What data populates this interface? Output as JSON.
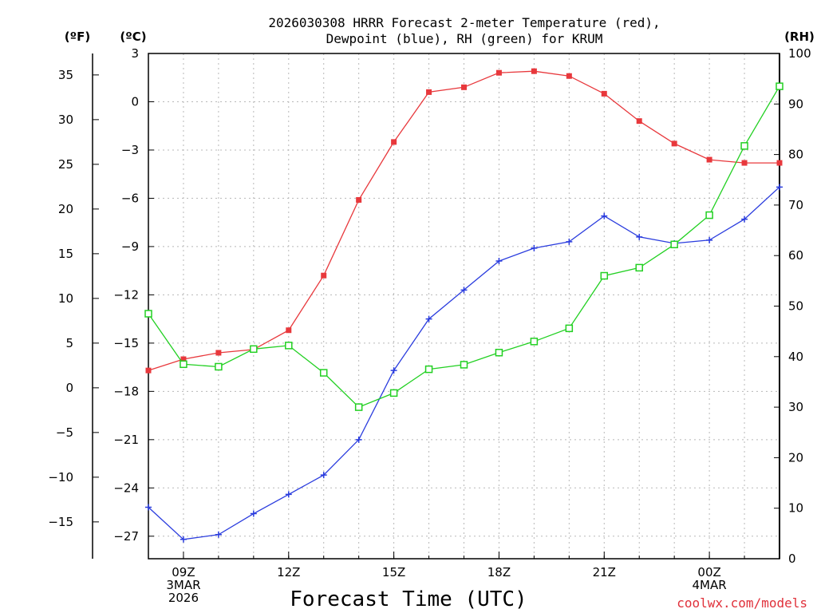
{
  "chart_data": {
    "type": "line",
    "title_line1": "2026030308 HRRR Forecast 2-meter Temperature (red),",
    "title_line2": "Dewpoint (blue), RH (green) for KRUM",
    "xlabel": "Forecast Time (UTC)",
    "credit": "coolwx.com/models",
    "units": {
      "left_f": "(ºF)",
      "left_c": "(ºC)",
      "right": "(RH)"
    },
    "x_hours": [
      8,
      9,
      10,
      11,
      12,
      13,
      14,
      15,
      16,
      17,
      18,
      19,
      20,
      21,
      22,
      23,
      24,
      25,
      26
    ],
    "xlim": [
      8,
      26
    ],
    "x_ticks": [
      {
        "hour": 9,
        "lines": [
          "09Z",
          "3MAR",
          "2026"
        ]
      },
      {
        "hour": 12,
        "lines": [
          "12Z"
        ]
      },
      {
        "hour": 15,
        "lines": [
          "15Z"
        ]
      },
      {
        "hour": 18,
        "lines": [
          "18Z"
        ]
      },
      {
        "hour": 21,
        "lines": [
          "21Z"
        ]
      },
      {
        "hour": 24,
        "lines": [
          "00Z",
          "4MAR"
        ]
      }
    ],
    "celsius_axis": {
      "ylim": [
        -28.4,
        3
      ],
      "ticks": [
        3,
        0,
        -3,
        -6,
        -9,
        -12,
        -15,
        -18,
        -21,
        -24,
        -27
      ]
    },
    "fahrenheit_ticks": [
      35,
      30,
      25,
      20,
      15,
      10,
      5,
      0,
      -5,
      -10,
      -15
    ],
    "rh_axis": {
      "ylim": [
        0,
        100
      ],
      "ticks": [
        0,
        10,
        20,
        30,
        40,
        50,
        60,
        70,
        80,
        90,
        100
      ]
    },
    "series": [
      {
        "name": "Temperature",
        "axis": "celsius",
        "color": "#e8383c",
        "marker": "filled-square",
        "values": [
          -16.7,
          -16.0,
          -15.6,
          -15.4,
          -14.2,
          -10.8,
          -6.1,
          -2.5,
          0.6,
          0.9,
          1.8,
          1.9,
          1.6,
          0.5,
          -1.2,
          -2.6,
          -3.6,
          -3.8,
          -3.8
        ]
      },
      {
        "name": "Dewpoint",
        "axis": "celsius",
        "color": "#2a3cde",
        "marker": "plus",
        "values": [
          -25.2,
          -27.2,
          -26.9,
          -25.6,
          -24.4,
          -23.2,
          -21.0,
          -16.7,
          -13.5,
          -11.7,
          -9.9,
          -9.1,
          -8.7,
          -7.1,
          -8.4,
          -8.8,
          -8.6,
          -7.3,
          -5.3
        ]
      },
      {
        "name": "RH",
        "axis": "rh",
        "color": "#22d022",
        "marker": "open-square",
        "values": [
          48.5,
          38.5,
          38.0,
          41.5,
          42.2,
          36.8,
          30.0,
          32.8,
          37.5,
          38.4,
          40.8,
          43.0,
          45.6,
          56.0,
          57.6,
          62.2,
          68.0,
          81.7,
          93.5
        ]
      }
    ]
  }
}
